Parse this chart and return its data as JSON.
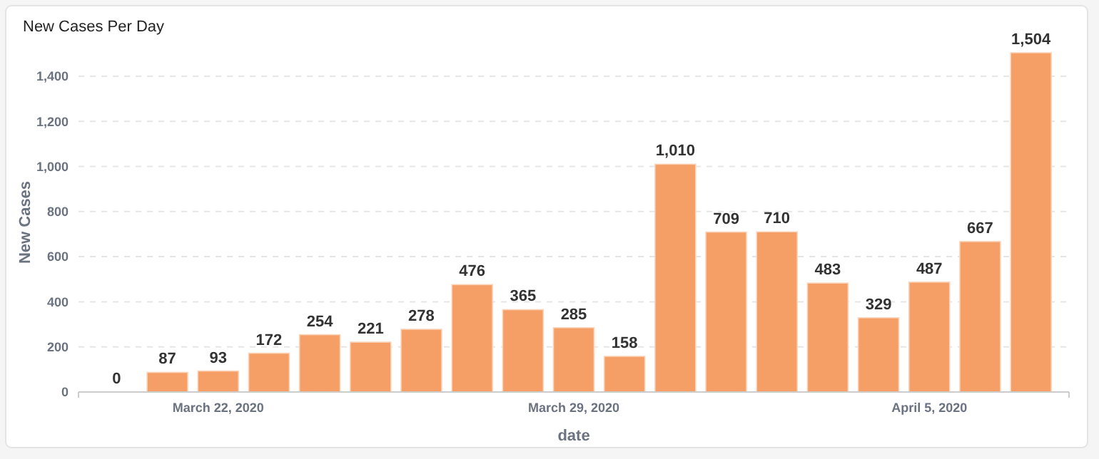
{
  "chart_data": {
    "type": "bar",
    "title": "New Cases Per Day",
    "xlabel": "date",
    "ylabel": "New Cases",
    "x": [
      "2020-03-20",
      "2020-03-21",
      "2020-03-22",
      "2020-03-23",
      "2020-03-24",
      "2020-03-25",
      "2020-03-26",
      "2020-03-27",
      "2020-03-28",
      "2020-03-29",
      "2020-03-30",
      "2020-03-31",
      "2020-04-01",
      "2020-04-02",
      "2020-04-03",
      "2020-04-04",
      "2020-04-05",
      "2020-04-06",
      "2020-04-07"
    ],
    "values": [
      0,
      87,
      93,
      172,
      254,
      221,
      278,
      476,
      365,
      285,
      158,
      1010,
      709,
      710,
      483,
      329,
      487,
      667,
      1504
    ],
    "value_labels": [
      "0",
      "87",
      "93",
      "172",
      "254",
      "221",
      "278",
      "476",
      "365",
      "285",
      "158",
      "1,010",
      "709",
      "710",
      "483",
      "329",
      "487",
      "667",
      "1,504"
    ],
    "color": "#f59e66",
    "xlim": [
      "2020-03-19T06:00",
      "2020-04-07T18:00"
    ],
    "xticks": [
      {
        "value": "2020-03-22",
        "label": "March 22, 2020"
      },
      {
        "value": "2020-03-29",
        "label": "March 29, 2020"
      },
      {
        "value": "2020-04-05",
        "label": "April 5, 2020"
      }
    ],
    "ylim": [
      0,
      1504
    ],
    "yticks": [
      {
        "value": 0,
        "label": "0"
      },
      {
        "value": 200,
        "label": "200"
      },
      {
        "value": 400,
        "label": "400"
      },
      {
        "value": 600,
        "label": "600"
      },
      {
        "value": 800,
        "label": "800"
      },
      {
        "value": 1000,
        "label": "1,000"
      },
      {
        "value": 1200,
        "label": "1,200"
      },
      {
        "value": 1400,
        "label": "1,400"
      }
    ],
    "grid": "y"
  }
}
